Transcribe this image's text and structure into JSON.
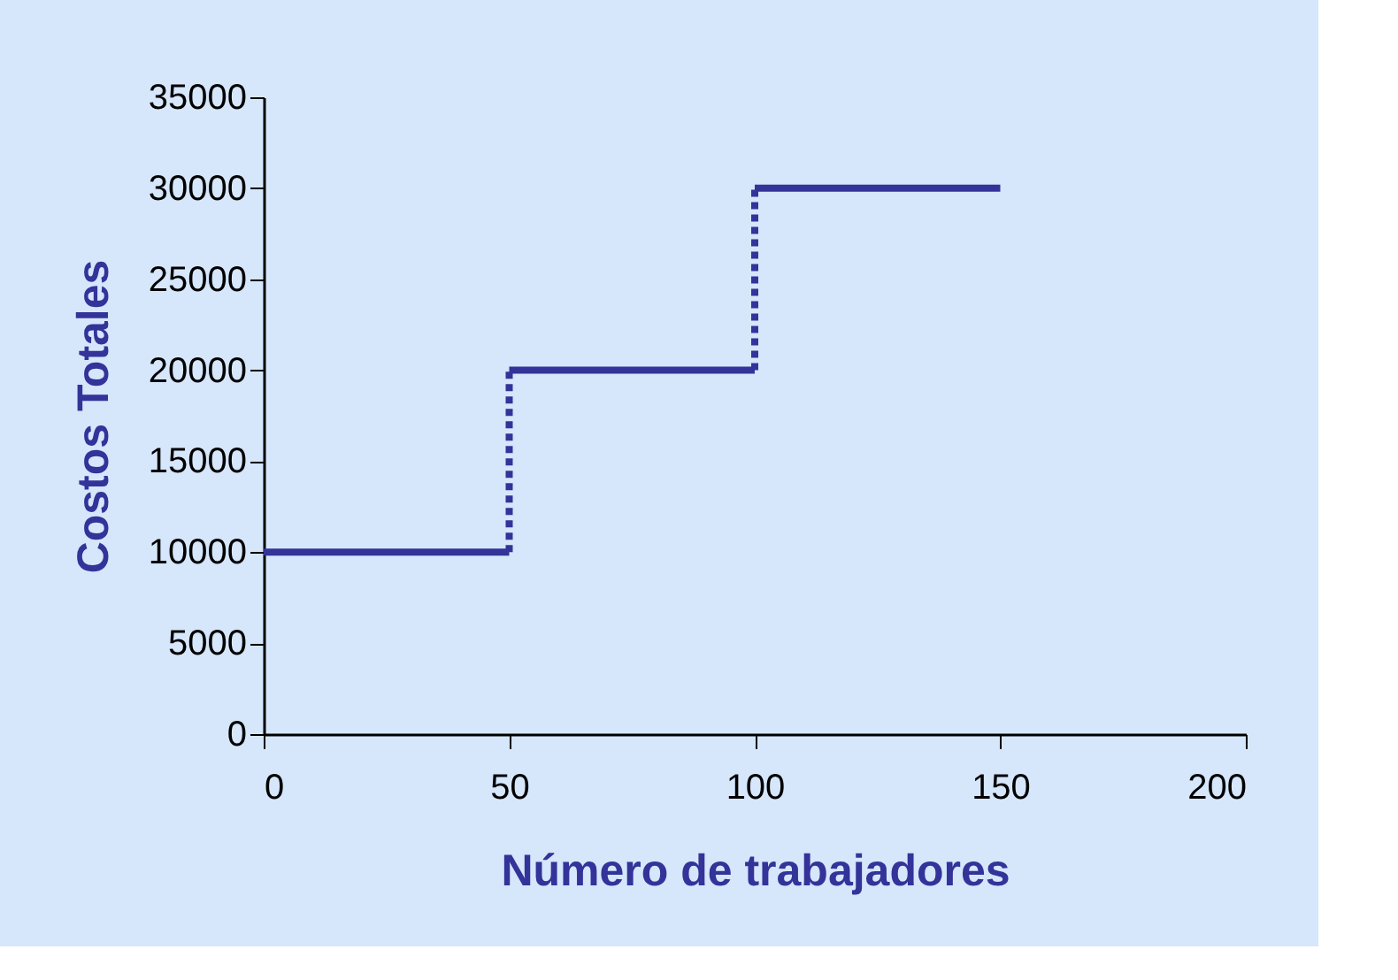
{
  "chart_data": {
    "type": "line",
    "xlabel": "Número de trabajadores",
    "ylabel": "Costos Totales",
    "xlim": [
      0,
      200
    ],
    "xticks": [
      0,
      50,
      100,
      150,
      200
    ],
    "ylim": [
      0,
      35000
    ],
    "yticks": [
      0,
      5000,
      10000,
      15000,
      20000,
      25000,
      30000,
      35000
    ],
    "grid": false,
    "legend": false,
    "marker": "none",
    "series": [
      {
        "x": [
          0,
          50
        ],
        "values": [
          10000,
          10000
        ],
        "color": "#333399",
        "line_style": "solid"
      },
      {
        "x": [
          50,
          50
        ],
        "values": [
          10000,
          20000
        ],
        "color": "#333399",
        "line_style": "dotted"
      },
      {
        "x": [
          50,
          100
        ],
        "values": [
          20000,
          20000
        ],
        "color": "#333399",
        "line_style": "solid"
      },
      {
        "x": [
          100,
          100
        ],
        "values": [
          20000,
          30000
        ],
        "color": "#333399",
        "line_style": "dotted"
      },
      {
        "x": [
          100,
          150
        ],
        "values": [
          30000,
          30000
        ],
        "color": "#333399",
        "line_style": "solid"
      }
    ]
  }
}
